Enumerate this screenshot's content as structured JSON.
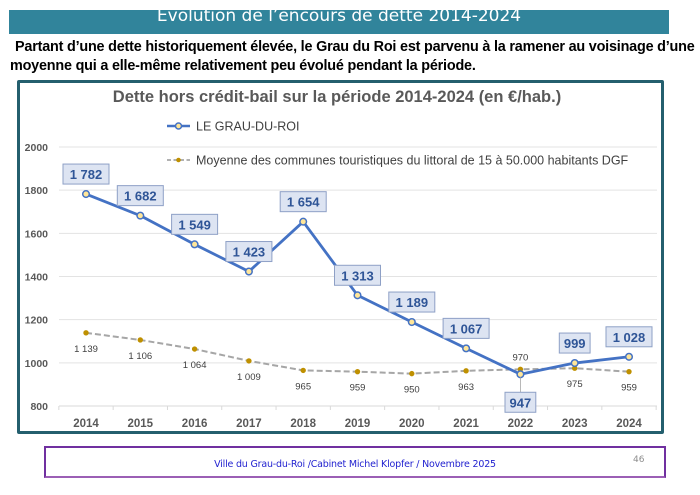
{
  "slide": {
    "title": "Evolution de l’encours de dette 2014-2024",
    "intro_line1": "Partant d’une dette historiquement élevée, le Grau du Roi est parvenu à la ramener au voisinage d’une",
    "intro_line2": "moyenne qui a elle-même relativement peu évolué pendant la période.",
    "footer": "Ville du Grau-du-Roi /Cabinet Michel Klopfer / Novembre 2025",
    "page_number": "46"
  },
  "chart_data": {
    "type": "line",
    "title": "Dette hors crédit-bail sur la période 2014-2024 (en €/hab.)",
    "xlabel": "",
    "ylabel": "",
    "x": [
      "2014",
      "2015",
      "2016",
      "2017",
      "2018",
      "2019",
      "2020",
      "2021",
      "2022",
      "2023",
      "2024"
    ],
    "ylim": [
      800,
      2000
    ],
    "yticks": [
      "800",
      "1000",
      "1200",
      "1400",
      "1600",
      "1800",
      "2000"
    ],
    "grid": true,
    "legend_position": "top-center",
    "series": [
      {
        "name": "LE GRAU-DU-ROI",
        "values": [
          1782,
          1682,
          1549,
          1423,
          1654,
          1313,
          1189,
          1067,
          947,
          999,
          1028
        ],
        "labels": [
          "1 782",
          "1 682",
          "1 549",
          "1 423",
          "1 654",
          "1 313",
          "1 189",
          "1 067",
          "947",
          "999",
          "1 028"
        ],
        "color": "#4472c4",
        "marker_fill": "#ffe699",
        "style": "solid"
      },
      {
        "name": "Moyenne des communes touristiques du littoral de 15 à 50.000 habitants DGF",
        "values": [
          1139,
          1106,
          1064,
          1009,
          965,
          959,
          950,
          963,
          970,
          975,
          959
        ],
        "labels": [
          "1 139",
          "1 106",
          "1 064",
          "1 009",
          "965",
          "959",
          "950",
          "963",
          "970",
          "975",
          "959"
        ],
        "color": "#a6a6a6",
        "marker_fill": "#bf9000",
        "style": "dashed"
      }
    ]
  },
  "colors": {
    "title_bar": "#31849b",
    "chart_border": "#245f6e",
    "footer_border": "#7030a0",
    "footer_text": "#1f1fcf",
    "label_text": "#1f3864",
    "axis_text": "#595959"
  }
}
